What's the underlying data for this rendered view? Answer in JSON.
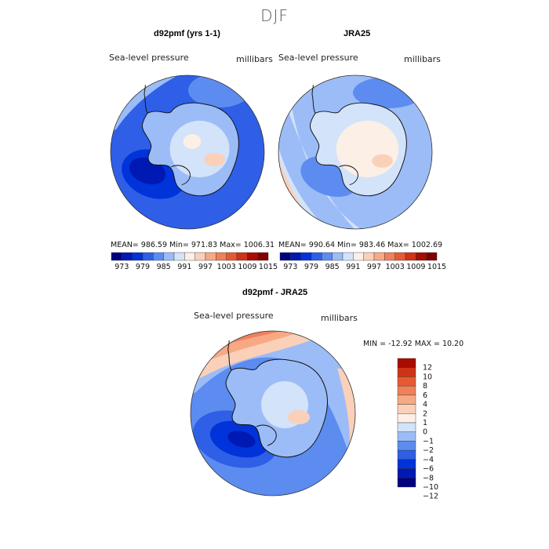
{
  "page": {
    "season": "DJF"
  },
  "palettes": {
    "abs": [
      "#000080",
      "#0019b3",
      "#0033d9",
      "#2e5fe6",
      "#5c8cf0",
      "#9cbcf7",
      "#d2e3fa",
      "#fcefe6",
      "#fbd0b8",
      "#f7a985",
      "#f0805a",
      "#e65a33",
      "#cf3316",
      "#a80d00",
      "#800000"
    ],
    "diff": [
      "#000080",
      "#0019b3",
      "#0033d9",
      "#2e5fe6",
      "#5c8cf0",
      "#9cbcf7",
      "#d2e3fa",
      "#fcefe6",
      "#fbd0b8",
      "#f7a985",
      "#f0805a",
      "#e65a33",
      "#cf3316",
      "#a80d00"
    ]
  },
  "panels": [
    {
      "id": "model",
      "title": "d92pmf (yrs 1-1)",
      "field_label": "Sea-level pressure",
      "units": "millibars",
      "stats": {
        "mean": "986.59",
        "min": "971.83",
        "max": "1006.31"
      },
      "stats_text": "MEAN= 986.59   Min= 971.83   Max= 1006.31",
      "colorbar_ticks": [
        "973",
        "979",
        "985",
        "991",
        "997",
        "1003",
        "1009",
        "1015"
      ]
    },
    {
      "id": "obs",
      "title": "JRA25",
      "field_label": "Sea-level pressure",
      "units": "millibars",
      "stats": {
        "mean": "990.64",
        "min": "983.46",
        "max": "1002.69"
      },
      "stats_text": "MEAN= 990.64   Min= 983.46   Max= 1002.69",
      "colorbar_ticks": [
        "973",
        "979",
        "985",
        "991",
        "997",
        "1003",
        "1009",
        "1015"
      ]
    },
    {
      "id": "diff",
      "title": "d92pmf - JRA25",
      "field_label": "Sea-level pressure",
      "units": "millibars",
      "minmax_text": "MIN = -12.92  MAX =  10.20",
      "colorbar_ticks": [
        "12",
        "10",
        "8",
        "6",
        "4",
        "2",
        "1",
        "0",
        "−1",
        "−2",
        "−4",
        "−6",
        "−8",
        "−10",
        "−12"
      ]
    }
  ]
}
